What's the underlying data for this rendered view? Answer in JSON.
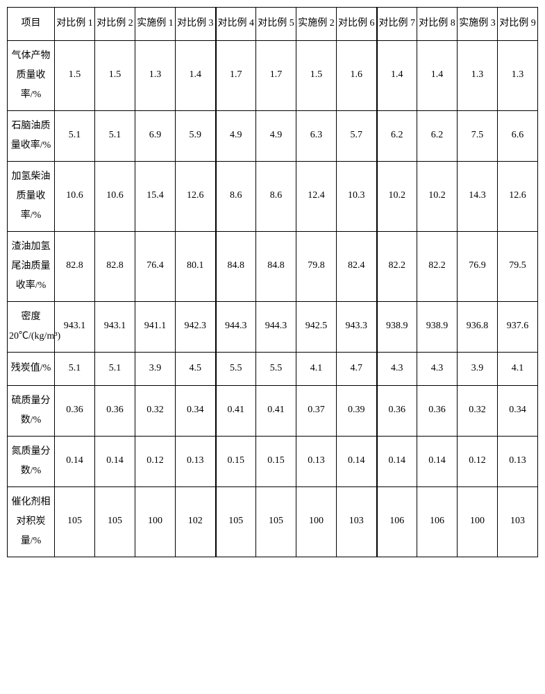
{
  "table": {
    "type": "table",
    "background_color": "#ffffff",
    "border_color": "#000000",
    "text_color": "#000000",
    "font_family": "SimSun",
    "header_fontsize": 14,
    "cell_fontsize": 14,
    "line_height": 2.2,
    "group_separator_after_columns": [
      4,
      8
    ],
    "columns": [
      "项目",
      "对比例 1",
      "对比例 2",
      "实施例 1",
      "对比例 3",
      "对比例 4",
      "对比例 5",
      "实施例 2",
      "对比例 6",
      "对比例 7",
      "对比例 8",
      "实施例 3",
      "对比例 9"
    ],
    "row_labels": [
      "气体产物质量收率/%",
      "石脑油质量收率/%",
      "加氢柴油质量收率/%",
      "渣油加氢尾油质量收率/%",
      "密度20℃/(kg/m³)",
      "残炭值/%",
      "硫质量分数/%",
      "氮质量分数/%",
      "催化剂相对积炭量/%"
    ],
    "rows": [
      [
        "1.5",
        "1.5",
        "1.3",
        "1.4",
        "1.7",
        "1.7",
        "1.5",
        "1.6",
        "1.4",
        "1.4",
        "1.3",
        "1.3"
      ],
      [
        "5.1",
        "5.1",
        "6.9",
        "5.9",
        "4.9",
        "4.9",
        "6.3",
        "5.7",
        "6.2",
        "6.2",
        "7.5",
        "6.6"
      ],
      [
        "10.6",
        "10.6",
        "15.4",
        "12.6",
        "8.6",
        "8.6",
        "12.4",
        "10.3",
        "10.2",
        "10.2",
        "14.3",
        "12.6"
      ],
      [
        "82.8",
        "82.8",
        "76.4",
        "80.1",
        "84.8",
        "84.8",
        "79.8",
        "82.4",
        "82.2",
        "82.2",
        "76.9",
        "79.5"
      ],
      [
        "943.1",
        "943.1",
        "941.1",
        "942.3",
        "944.3",
        "944.3",
        "942.5",
        "943.3",
        "938.9",
        "938.9",
        "936.8",
        "937.6"
      ],
      [
        "5.1",
        "5.1",
        "3.9",
        "4.5",
        "5.5",
        "5.5",
        "4.1",
        "4.7",
        "4.3",
        "4.3",
        "3.9",
        "4.1"
      ],
      [
        "0.36",
        "0.36",
        "0.32",
        "0.34",
        "0.41",
        "0.41",
        "0.37",
        "0.39",
        "0.36",
        "0.36",
        "0.32",
        "0.34"
      ],
      [
        "0.14",
        "0.14",
        "0.12",
        "0.13",
        "0.15",
        "0.15",
        "0.13",
        "0.14",
        "0.14",
        "0.14",
        "0.12",
        "0.13"
      ],
      [
        "105",
        "105",
        "100",
        "102",
        "105",
        "105",
        "100",
        "103",
        "106",
        "106",
        "100",
        "103"
      ]
    ]
  }
}
